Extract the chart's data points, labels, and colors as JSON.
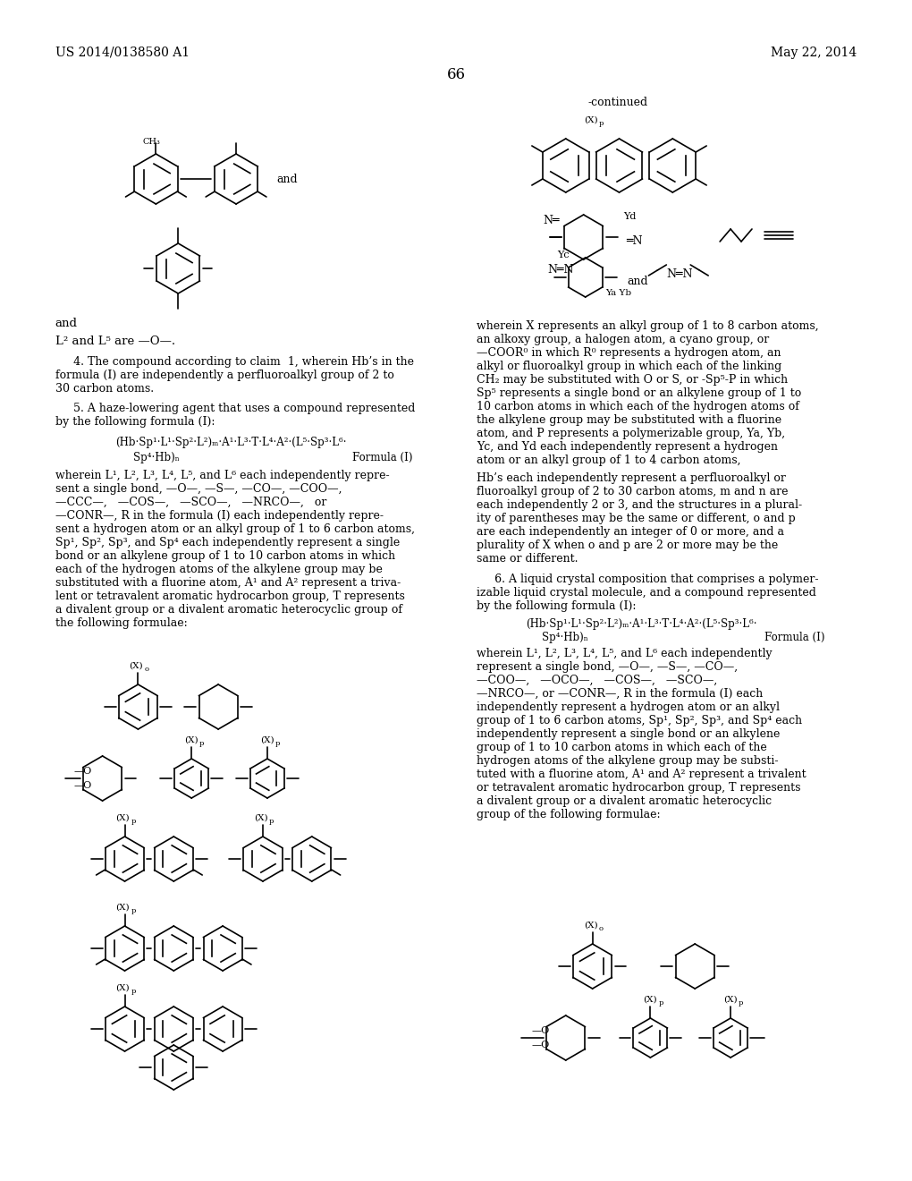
{
  "page_number": "66",
  "patent_number": "US 2014/0138580 A1",
  "patent_date": "May 22, 2014",
  "background_color": "#ffffff",
  "text_color": "#000000",
  "font_size_header": 11,
  "font_size_body": 8.5,
  "font_size_page": 12
}
